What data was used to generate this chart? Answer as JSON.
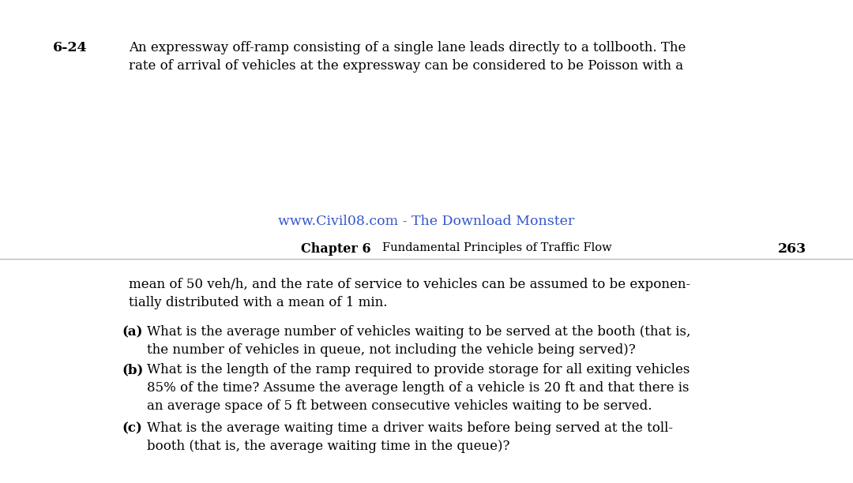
{
  "bg_color": "#ffffff",
  "separator_color": "#bbbbbb",
  "problem_number": "6-24",
  "top_line1": "An expressway off-ramp consisting of a single lane leads directly to a tollbooth. The",
  "top_line2": "rate of arrival of vehicles at the expressway can be considered to be Poisson with a",
  "watermark_text": "www.Civil08.com - The Download Monster",
  "watermark_color": "#3355cc",
  "chapter_label": "Chapter 6",
  "chapter_title": "Fundamental Principles of Traffic Flow",
  "page_number": "263",
  "continuation_line1": "mean of 50 veh/h, and the rate of service to vehicles can be assumed to be exponen-",
  "continuation_line2": "tially distributed with a mean of 1 min.",
  "item_a_label": "(a)",
  "item_a_line1": "What is the average number of vehicles waiting to be served at the booth (that is,",
  "item_a_line2": "the number of vehicles in queue, not including the vehicle being served)?",
  "item_b_label": "(b)",
  "item_b_line1": "What is the length of the ramp required to provide storage for all exiting vehicles",
  "item_b_line2": "85% of the time? Assume the average length of a vehicle is 20 ft and that there is",
  "item_b_line3": "an average space of 5 ft between consecutive vehicles waiting to be served.",
  "item_c_label": "(c)",
  "item_c_line1": "What is the average waiting time a driver waits before being served at the toll-",
  "item_c_line2": "booth (that is, the average waiting time in the queue)?"
}
